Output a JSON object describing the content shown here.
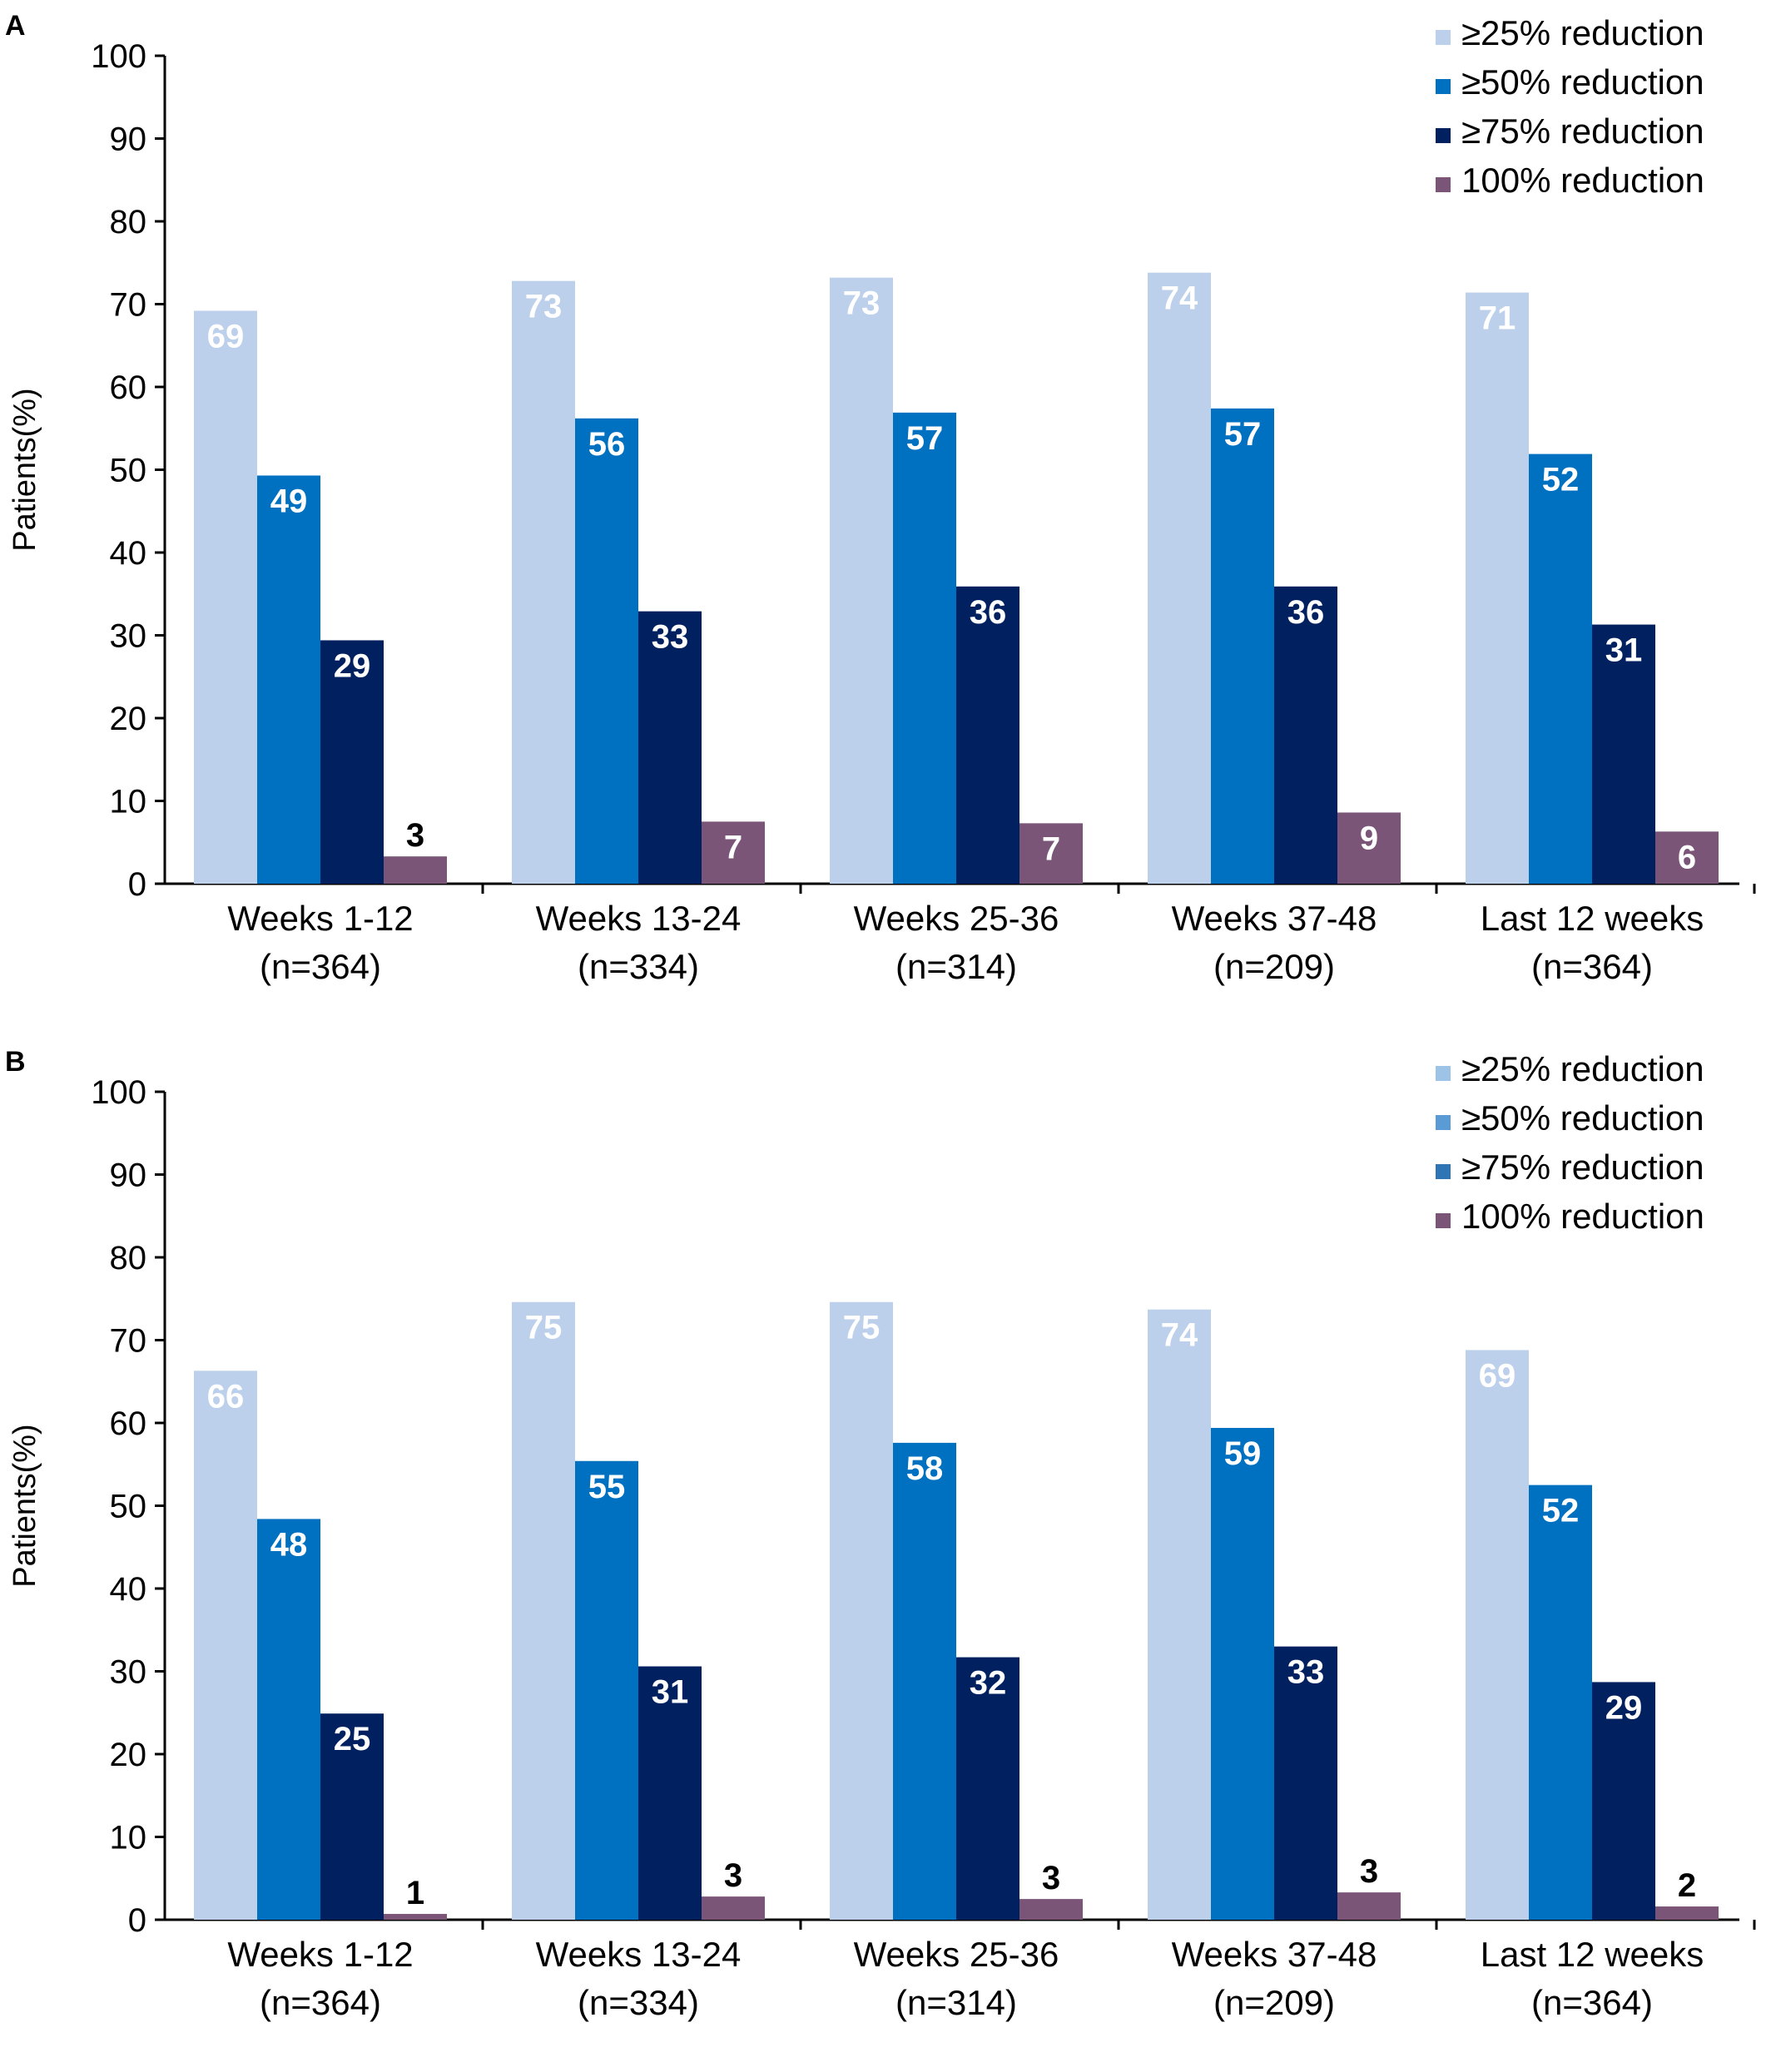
{
  "chart_data": [
    {
      "panel_label": "A",
      "type": "bar",
      "ylabel": "Patients(%)",
      "ylim": [
        0,
        100
      ],
      "yticks": [
        0,
        10,
        20,
        30,
        40,
        50,
        60,
        70,
        80,
        90,
        100
      ],
      "grid": false,
      "legend_position": "top-right",
      "categories": [
        [
          "Weeks 1-12",
          "(n=364)"
        ],
        [
          "Weeks 13-24",
          "(n=334)"
        ],
        [
          "Weeks 25-36",
          "(n=314)"
        ],
        [
          "Weeks 37-48",
          "(n=209)"
        ],
        [
          "Last 12 weeks",
          "(n=364)"
        ]
      ],
      "series": [
        {
          "name": "≥25% reduction",
          "color": "#bdd0eb",
          "legend_color": "#bdd0eb",
          "label_color": "#ffffff",
          "values": [
            69.2,
            72.8,
            73.2,
            73.8,
            71.4
          ],
          "labels": [
            "69",
            "73",
            "73",
            "74",
            "71"
          ]
        },
        {
          "name": "≥50% reduction",
          "color": "#0070c0",
          "legend_color": "#0070c0",
          "label_color": "#ffffff",
          "values": [
            49.3,
            56.2,
            56.9,
            57.4,
            51.9
          ],
          "labels": [
            "49",
            "56",
            "57",
            "57",
            "52"
          ]
        },
        {
          "name": "≥75% reduction",
          "color": "#002060",
          "legend_color": "#002060",
          "label_color": "#ffffff",
          "values": [
            29.4,
            32.9,
            35.9,
            35.9,
            31.3
          ],
          "labels": [
            "29",
            "33",
            "36",
            "36",
            "31"
          ]
        },
        {
          "name": "100% reduction",
          "color": "#7a5578",
          "legend_color": "#7a5578",
          "label_color": "#ffffff",
          "values": [
            3.3,
            7.5,
            7.3,
            8.6,
            6.3
          ],
          "labels": [
            "3",
            "7",
            "7",
            "9",
            "6"
          ]
        }
      ]
    },
    {
      "panel_label": "B",
      "type": "bar",
      "ylabel": "Patients(%)",
      "ylim": [
        0,
        100
      ],
      "yticks": [
        0,
        10,
        20,
        30,
        40,
        50,
        60,
        70,
        80,
        90,
        100
      ],
      "grid": false,
      "legend_position": "top-right",
      "categories": [
        [
          "Weeks 1-12",
          "(n=364)"
        ],
        [
          "Weeks 13-24",
          "(n=334)"
        ],
        [
          "Weeks 25-36",
          "(n=314)"
        ],
        [
          "Weeks 37-48",
          "(n=209)"
        ],
        [
          "Last 12 weeks",
          "(n=364)"
        ]
      ],
      "series": [
        {
          "name": "≥25% reduction",
          "color": "#bdd0eb",
          "legend_color": "#9dc3e6",
          "label_color": "#ffffff",
          "values": [
            66.3,
            74.6,
            74.6,
            73.7,
            68.8
          ],
          "labels": [
            "66",
            "75",
            "75",
            "74",
            "69"
          ]
        },
        {
          "name": "≥50% reduction",
          "color": "#0070c0",
          "legend_color": "#5b9bd5",
          "label_color": "#ffffff",
          "values": [
            48.4,
            55.4,
            57.6,
            59.4,
            52.5
          ],
          "labels": [
            "48",
            "55",
            "58",
            "59",
            "52"
          ]
        },
        {
          "name": "≥75% reduction",
          "color": "#002060",
          "legend_color": "#2e75b6",
          "label_color": "#ffffff",
          "values": [
            24.9,
            30.6,
            31.7,
            33.0,
            28.7
          ],
          "labels": [
            "25",
            "31",
            "32",
            "33",
            "29"
          ]
        },
        {
          "name": "100% reduction",
          "color": "#7a5578",
          "legend_color": "#7a5578",
          "label_color": "#000000",
          "values": [
            0.7,
            2.8,
            2.5,
            3.3,
            1.6
          ],
          "labels": [
            "1",
            "3",
            "3",
            "3",
            "2"
          ]
        }
      ]
    }
  ]
}
